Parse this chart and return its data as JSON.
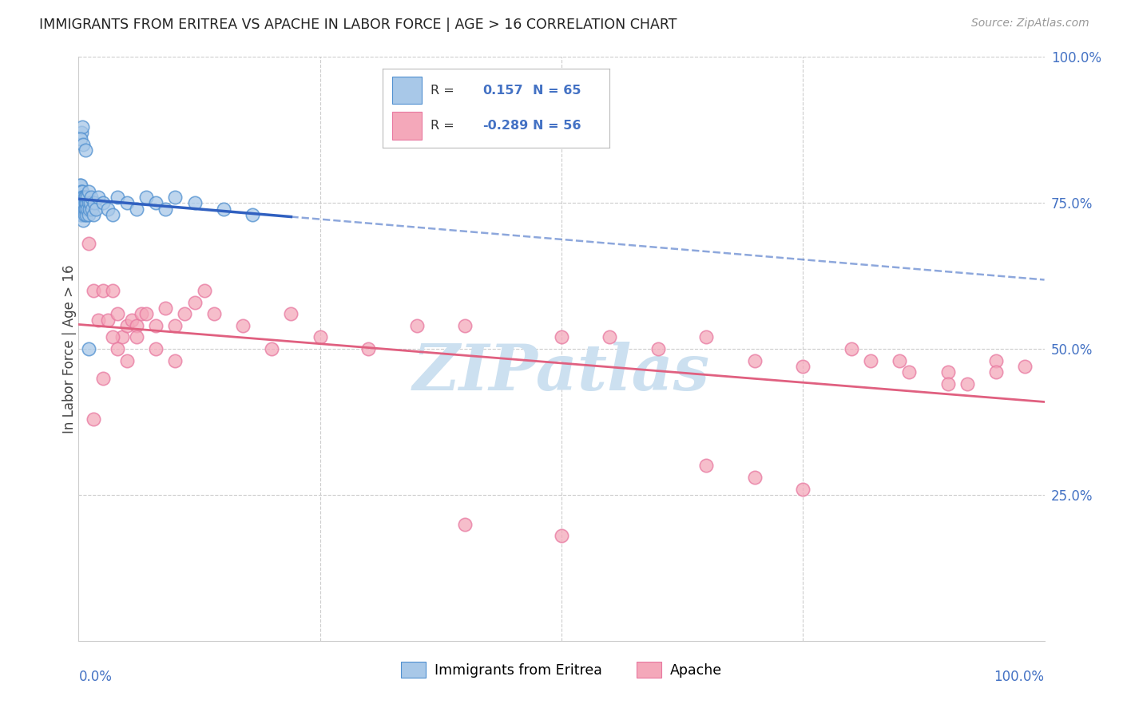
{
  "title": "IMMIGRANTS FROM ERITREA VS APACHE IN LABOR FORCE | AGE > 16 CORRELATION CHART",
  "source": "Source: ZipAtlas.com",
  "ylabel": "In Labor Force | Age > 16",
  "legend_label1": "Immigrants from Eritrea",
  "legend_label2": "Apache",
  "r1": 0.157,
  "n1": 65,
  "r2": -0.289,
  "n2": 56,
  "blue_color": "#a8c8e8",
  "pink_color": "#f4a8ba",
  "blue_line_color": "#3060c0",
  "pink_line_color": "#e06080",
  "blue_edge_color": "#5090d0",
  "pink_edge_color": "#e878a0",
  "watermark_color": "#cce0f0",
  "grid_color": "#cccccc",
  "tick_label_color": "#4472c4",
  "title_color": "#222222",
  "source_color": "#999999",
  "blue_scatter_x": [
    0.001,
    0.001,
    0.001,
    0.001,
    0.001,
    0.002,
    0.002,
    0.002,
    0.002,
    0.002,
    0.002,
    0.002,
    0.003,
    0.003,
    0.003,
    0.003,
    0.003,
    0.004,
    0.004,
    0.004,
    0.004,
    0.005,
    0.005,
    0.005,
    0.005,
    0.006,
    0.006,
    0.006,
    0.007,
    0.007,
    0.007,
    0.008,
    0.008,
    0.009,
    0.009,
    0.01,
    0.01,
    0.01,
    0.011,
    0.012,
    0.013,
    0.014,
    0.015,
    0.016,
    0.018,
    0.02,
    0.025,
    0.03,
    0.035,
    0.04,
    0.05,
    0.06,
    0.07,
    0.08,
    0.09,
    0.1,
    0.12,
    0.15,
    0.18,
    0.01,
    0.003,
    0.004,
    0.002,
    0.005,
    0.007
  ],
  "blue_scatter_y": [
    0.76,
    0.77,
    0.75,
    0.78,
    0.74,
    0.76,
    0.77,
    0.75,
    0.73,
    0.78,
    0.74,
    0.76,
    0.75,
    0.77,
    0.73,
    0.76,
    0.74,
    0.75,
    0.77,
    0.73,
    0.76,
    0.74,
    0.76,
    0.72,
    0.75,
    0.74,
    0.76,
    0.73,
    0.75,
    0.74,
    0.76,
    0.75,
    0.73,
    0.74,
    0.76,
    0.75,
    0.73,
    0.77,
    0.74,
    0.75,
    0.76,
    0.74,
    0.73,
    0.75,
    0.74,
    0.76,
    0.75,
    0.74,
    0.73,
    0.76,
    0.75,
    0.74,
    0.76,
    0.75,
    0.74,
    0.76,
    0.75,
    0.74,
    0.73,
    0.5,
    0.87,
    0.88,
    0.86,
    0.85,
    0.84
  ],
  "pink_scatter_x": [
    0.01,
    0.015,
    0.02,
    0.025,
    0.03,
    0.035,
    0.04,
    0.045,
    0.05,
    0.055,
    0.06,
    0.065,
    0.07,
    0.08,
    0.09,
    0.1,
    0.11,
    0.12,
    0.13,
    0.015,
    0.025,
    0.035,
    0.04,
    0.05,
    0.06,
    0.08,
    0.1,
    0.14,
    0.17,
    0.2,
    0.22,
    0.25,
    0.3,
    0.35,
    0.4,
    0.5,
    0.55,
    0.6,
    0.65,
    0.7,
    0.75,
    0.8,
    0.85,
    0.9,
    0.92,
    0.95,
    0.98,
    0.65,
    0.7,
    0.75,
    0.82,
    0.86,
    0.9,
    0.95,
    0.4,
    0.5
  ],
  "pink_scatter_y": [
    0.68,
    0.6,
    0.55,
    0.6,
    0.55,
    0.6,
    0.56,
    0.52,
    0.54,
    0.55,
    0.54,
    0.56,
    0.56,
    0.54,
    0.57,
    0.54,
    0.56,
    0.58,
    0.6,
    0.38,
    0.45,
    0.52,
    0.5,
    0.48,
    0.52,
    0.5,
    0.48,
    0.56,
    0.54,
    0.5,
    0.56,
    0.52,
    0.5,
    0.54,
    0.54,
    0.52,
    0.52,
    0.5,
    0.52,
    0.48,
    0.47,
    0.5,
    0.48,
    0.46,
    0.44,
    0.48,
    0.47,
    0.3,
    0.28,
    0.26,
    0.48,
    0.46,
    0.44,
    0.46,
    0.2,
    0.18
  ]
}
